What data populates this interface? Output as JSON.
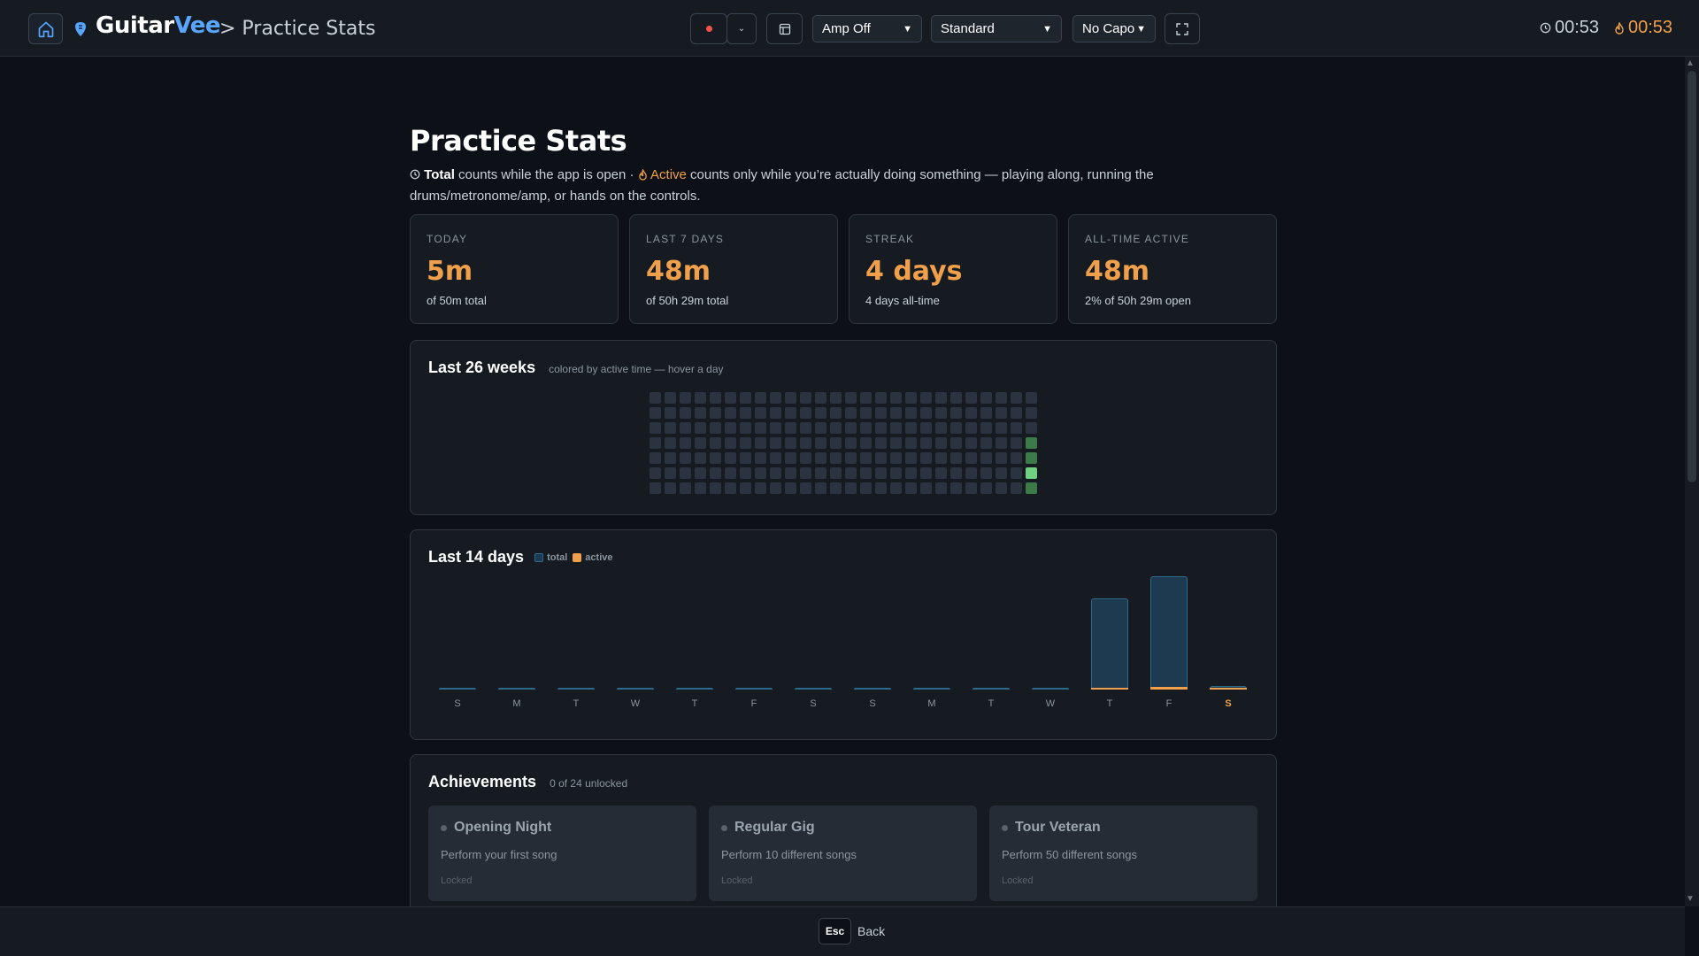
{
  "header": {
    "brand_main": "Guitar",
    "brand_accent": "Vee",
    "breadcrumb": "> Practice Stats",
    "amp_select": "Amp Off",
    "tuning_select": "Standard",
    "capo_select": "No Capo",
    "total_timer": "00:53",
    "active_timer": "00:53"
  },
  "page": {
    "title": "Practice Stats",
    "desc_total_word": "Total",
    "desc_part1": " counts while the app is open · ",
    "desc_active_word": "Active",
    "desc_part2": " counts only while you’re actually doing something — playing along, running the drums/metronome/amp, or hands on the controls."
  },
  "stats": [
    {
      "label": "TODAY",
      "value": "5m",
      "sub": "of 50m total"
    },
    {
      "label": "LAST 7 DAYS",
      "value": "48m",
      "sub": "of 50h 29m total"
    },
    {
      "label": "STREAK",
      "value": "4 days",
      "sub": "4 days all-time"
    },
    {
      "label": "ALL-TIME ACTIVE",
      "value": "48m",
      "sub": "2% of 50h 29m open"
    }
  ],
  "heatmap": {
    "title": "Last 26 weeks",
    "note": "colored by active time — hover a day",
    "weeks": 26,
    "days_per_week": 7,
    "active_cells": [
      {
        "week": 25,
        "day": 3,
        "level": 1
      },
      {
        "week": 25,
        "day": 4,
        "level": 1
      },
      {
        "week": 25,
        "day": 5,
        "level": 3
      },
      {
        "week": 25,
        "day": 6,
        "level": 1
      }
    ],
    "colors": {
      "empty": "#2b3340",
      "level1": "#3c7a4a",
      "level3": "#6fd07f"
    }
  },
  "chart_data": {
    "type": "bar",
    "title": "Last 14 days",
    "legend": [
      "total",
      "active"
    ],
    "categories": [
      "S",
      "M",
      "T",
      "W",
      "T",
      "F",
      "S",
      "S",
      "M",
      "T",
      "W",
      "T",
      "F",
      "S"
    ],
    "series": [
      {
        "name": "total",
        "values": [
          0,
          0,
          0,
          0,
          0,
          0,
          0,
          0,
          0,
          0,
          0,
          21,
          26,
          0.8
        ]
      },
      {
        "name": "active",
        "values": [
          0,
          0,
          0,
          0,
          0,
          0,
          0,
          0,
          0,
          0,
          0,
          0.2,
          0.6,
          0.1
        ]
      }
    ],
    "highlight_index": 13,
    "colors": {
      "total": "#1e3a50",
      "active": "#f0a04b"
    }
  },
  "achievements": {
    "title": "Achievements",
    "note": "0 of 24 unlocked",
    "items": [
      {
        "title": "Opening Night",
        "desc": "Perform your first song",
        "status": "Locked"
      },
      {
        "title": "Regular Gig",
        "desc": "Perform 10 different songs",
        "status": "Locked"
      },
      {
        "title": "Tour Veteran",
        "desc": "Perform 50 different songs",
        "status": "Locked"
      }
    ]
  },
  "footer": {
    "key": "Esc",
    "label": "Back"
  }
}
